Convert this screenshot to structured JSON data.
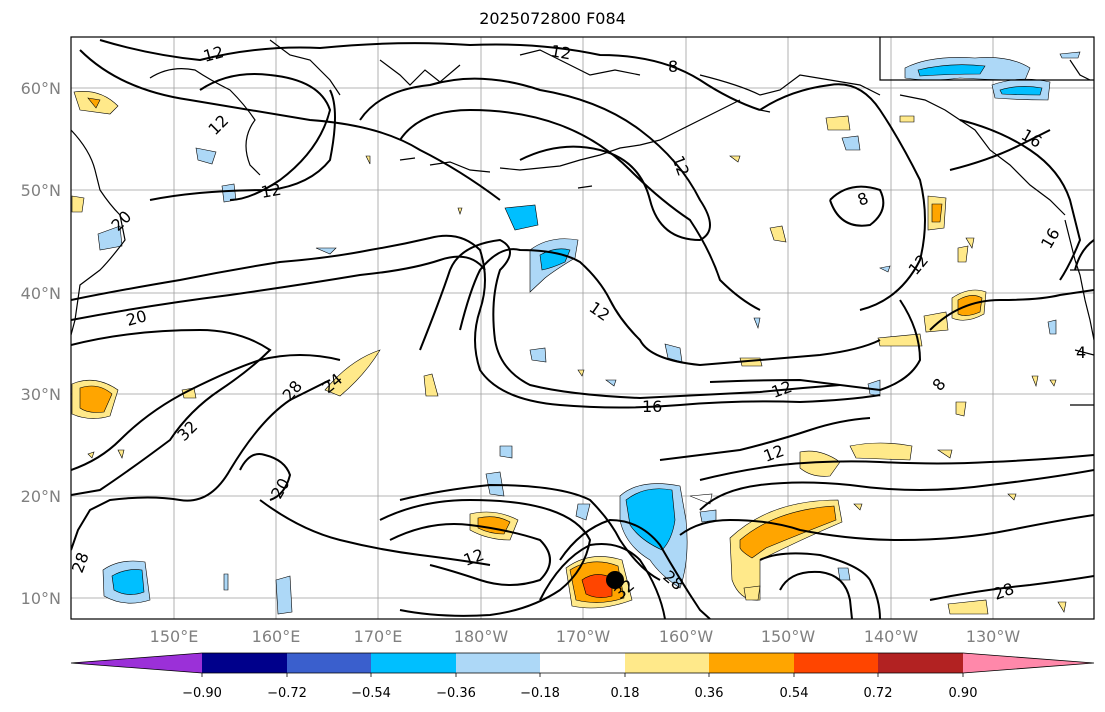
{
  "title": "2025072800 F084",
  "lat_labels": [
    "60°N",
    "50°N",
    "40°N",
    "30°N",
    "20°N",
    "10°N"
  ],
  "lon_labels": [
    "150°E",
    "160°E",
    "170°E",
    "180°W",
    "170°W",
    "160°W",
    "150°W",
    "140°W",
    "130°W"
  ],
  "contour_labels": {
    "c12a": "12",
    "c12b": "12",
    "c12c": "12",
    "c12d": "12",
    "c12e": "12",
    "c12f": "12",
    "c12g": "12",
    "c12h": "12",
    "c12i": "12",
    "c8a": "8",
    "c8b": "8",
    "c8c": "8",
    "c16a": "16",
    "c16b": "16",
    "c16c": "16",
    "c20a": "20",
    "c20b": "20",
    "c20c": "20",
    "c24a": "24",
    "c28a": "28",
    "c28b": "28",
    "c28c": "28",
    "c28d": "28",
    "c32a": "32",
    "c32b": "32",
    "c4a": "4"
  },
  "colorbar": {
    "ticks": [
      "−0.90",
      "−0.72",
      "−0.54",
      "−0.36",
      "−0.18",
      "0.18",
      "0.36",
      "0.54",
      "0.72",
      "0.90"
    ],
    "colors": [
      "#9b30d8",
      "#00008b",
      "#3a5fcd",
      "#00bfff",
      "#add8f7",
      "#ffffff",
      "#ffe98a",
      "#ffa500",
      "#ff4500",
      "#b22222",
      "#ff88aa"
    ]
  }
}
